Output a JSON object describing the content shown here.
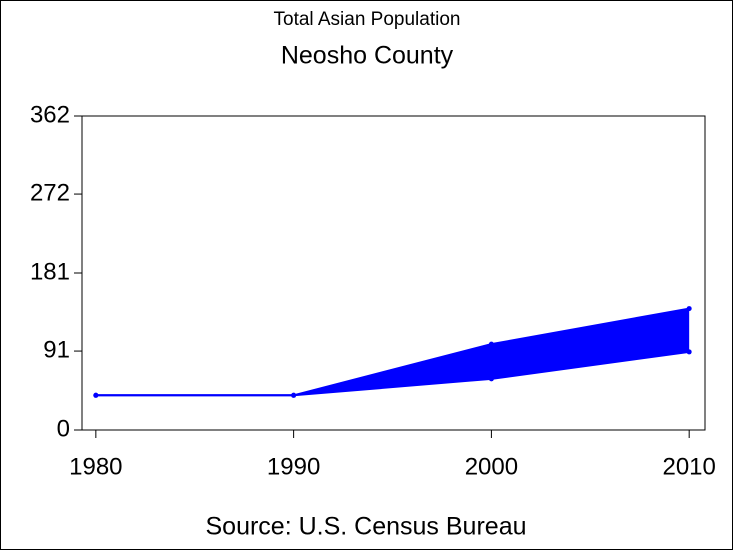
{
  "chart_data": {
    "type": "line",
    "title": "Total Asian Population",
    "subtitle": "Neosho County",
    "source": "Source: U.S. Census Bureau",
    "x": [
      1980,
      1990,
      2000,
      2010
    ],
    "series": [
      {
        "color": "#0000ff",
        "values": [
          40,
          40,
          99,
          140
        ]
      },
      {
        "color": "#0000ff",
        "values": [
          40,
          40,
          59,
          90
        ]
      }
    ],
    "fill_between": true,
    "xlim": [
      1979.3,
      2010.8
    ],
    "xticks": [
      1980,
      1990,
      2000,
      2010
    ],
    "ylim": [
      0,
      362
    ],
    "yticks": [
      0,
      91,
      181,
      272,
      362
    ]
  }
}
